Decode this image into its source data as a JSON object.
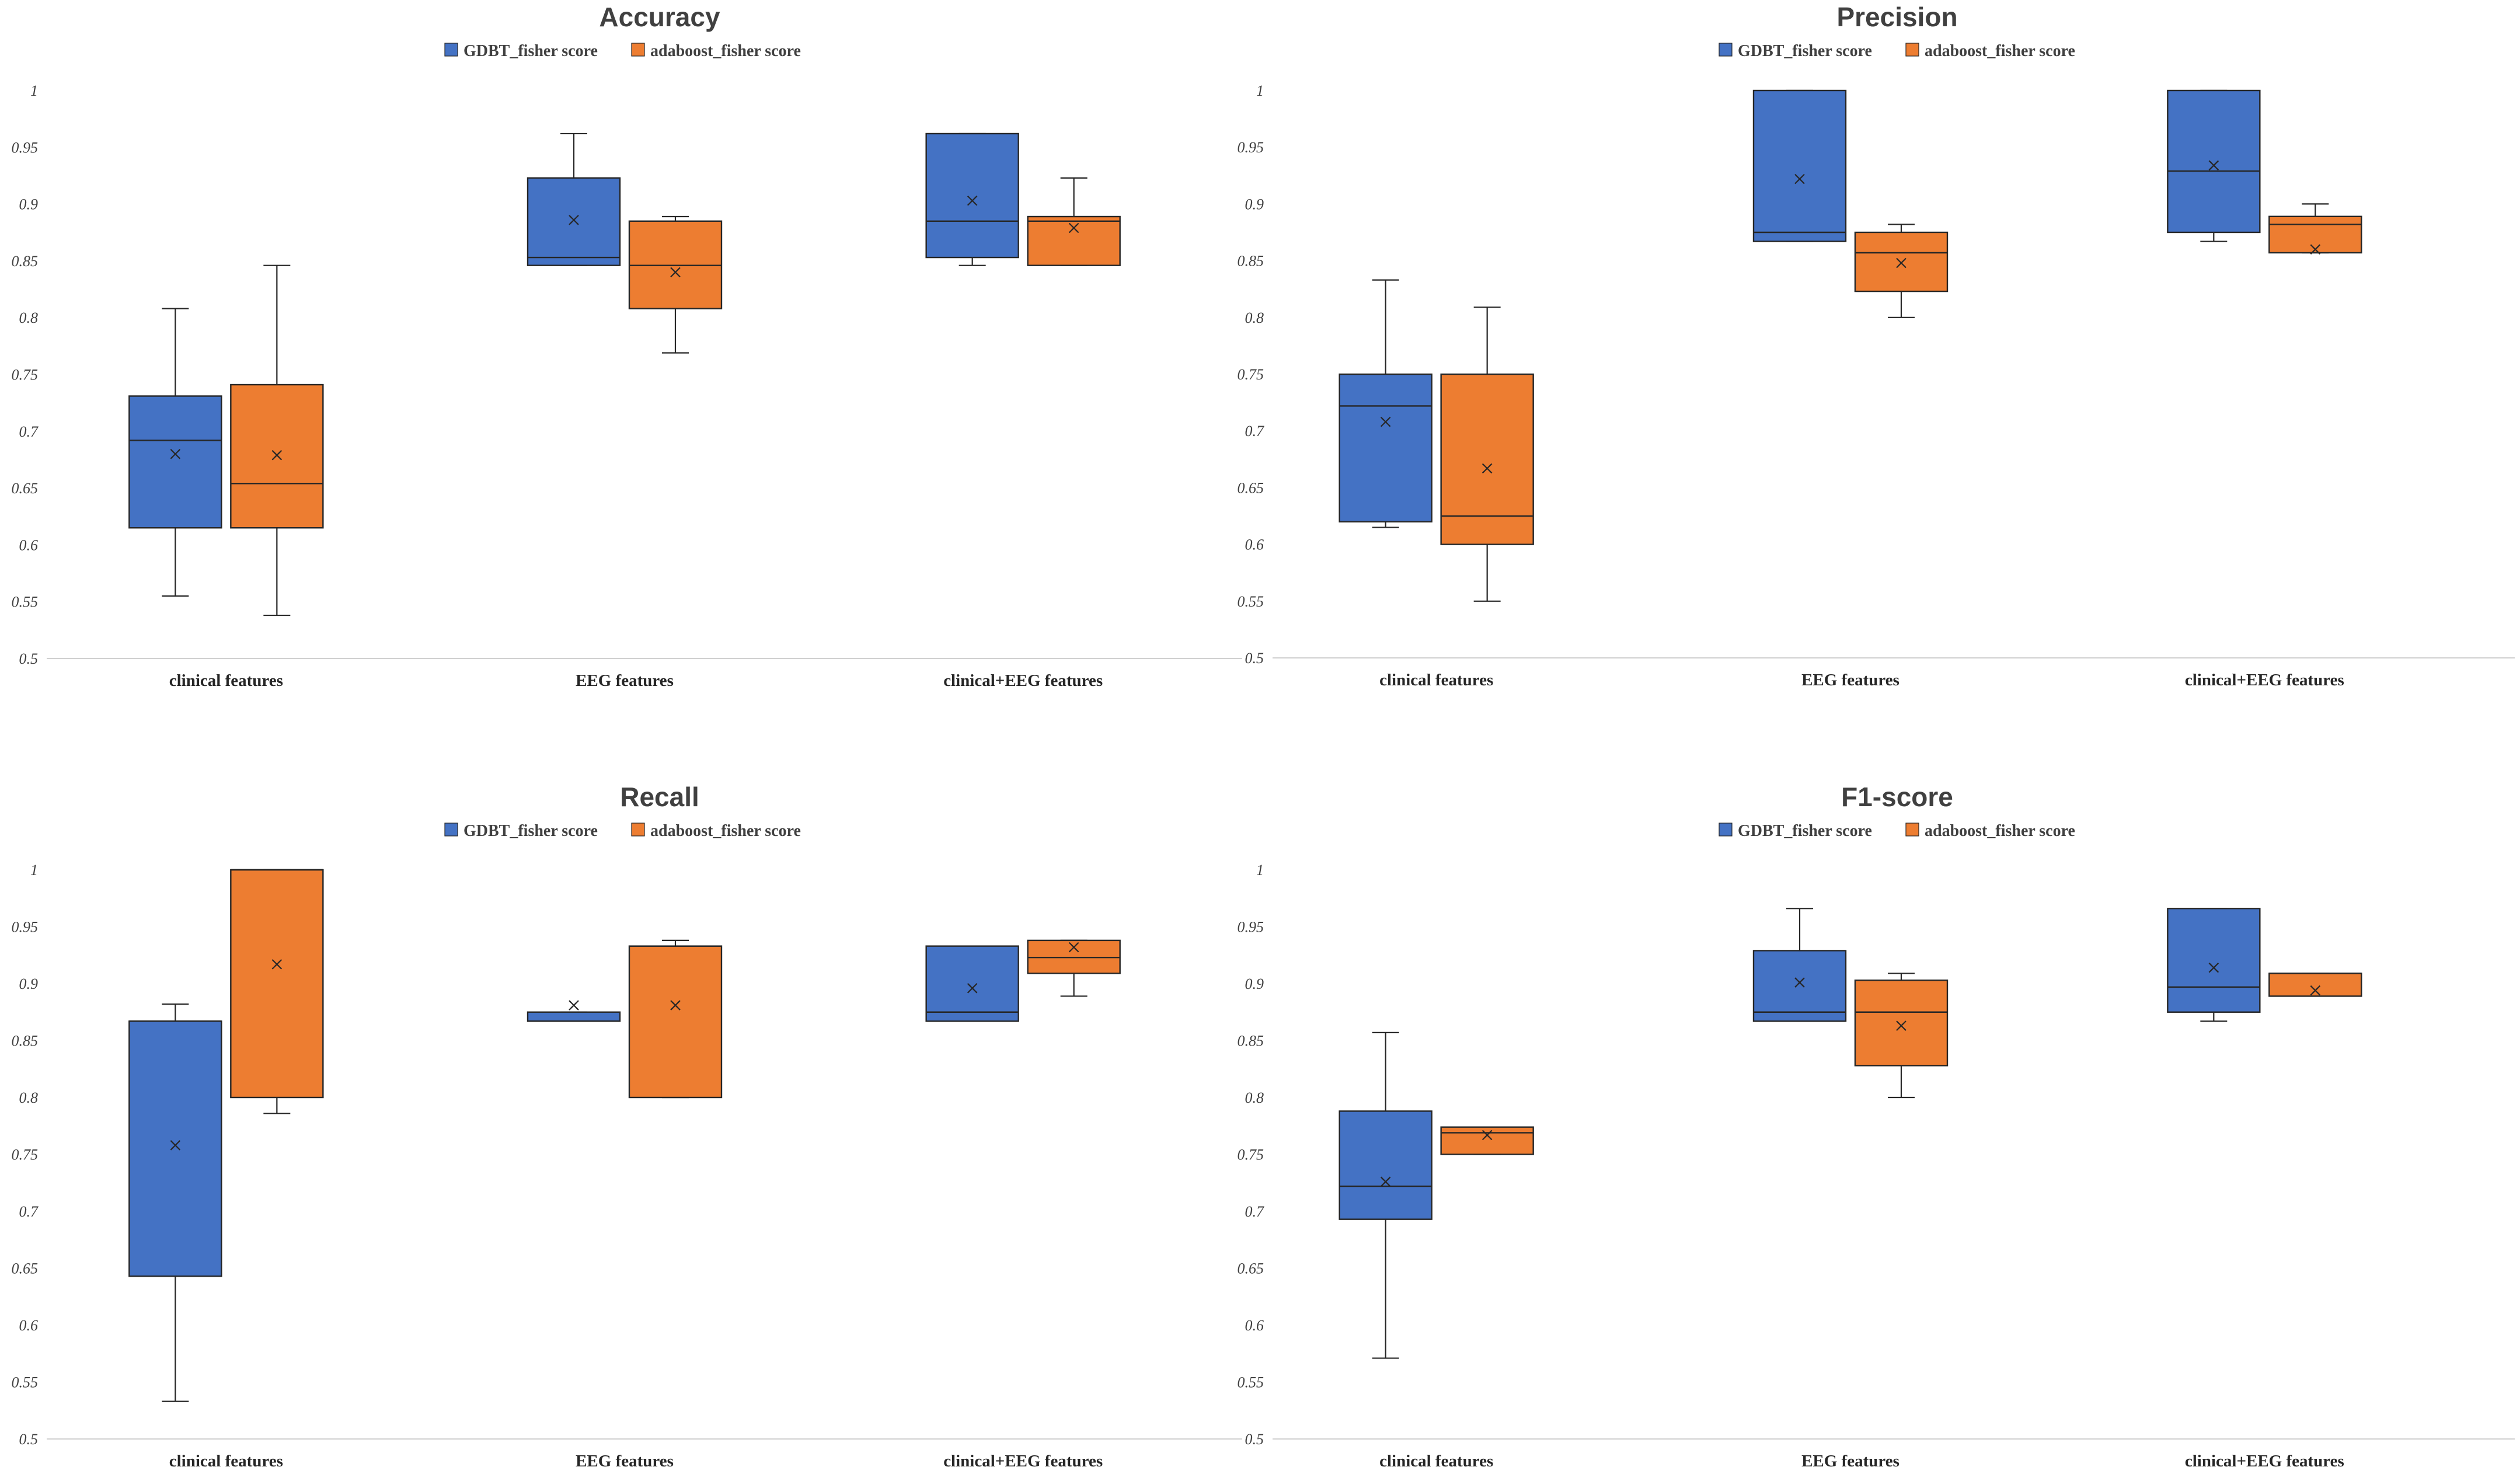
{
  "chart_data": [
    {
      "type": "box",
      "title": "Accuracy",
      "legend": [
        "GDBT_fisher score",
        "adaboost_fisher score"
      ],
      "categories": [
        "clinical features",
        "EEG features",
        "clinical+EEG features"
      ],
      "ylim": [
        0.5,
        1
      ],
      "yticks": [
        "0.5",
        "0.55",
        "0.6",
        "0.65",
        "0.7",
        "0.75",
        "0.8",
        "0.85",
        "0.9",
        "0.95",
        "1"
      ],
      "series": [
        {
          "name": "GDBT_fisher score",
          "color": "#4472c4",
          "boxes": [
            {
              "min": 0.555,
              "q1": 0.615,
              "median": 0.692,
              "q3": 0.731,
              "max": 0.808,
              "mean": 0.68
            },
            {
              "min": 0.846,
              "q1": 0.846,
              "median": 0.853,
              "q3": 0.923,
              "max": 0.962,
              "mean": 0.886
            },
            {
              "min": 0.846,
              "q1": 0.853,
              "median": 0.885,
              "q3": 0.962,
              "max": 0.962,
              "mean": 0.903
            }
          ]
        },
        {
          "name": "adaboost_fisher score",
          "color": "#ed7d31",
          "boxes": [
            {
              "min": 0.538,
              "q1": 0.615,
              "median": 0.654,
              "q3": 0.741,
              "max": 0.846,
              "mean": 0.679
            },
            {
              "min": 0.769,
              "q1": 0.808,
              "median": 0.846,
              "q3": 0.885,
              "max": 0.889,
              "mean": 0.84
            },
            {
              "min": 0.846,
              "q1": 0.846,
              "median": 0.885,
              "q3": 0.889,
              "max": 0.923,
              "mean": 0.879
            }
          ]
        }
      ]
    },
    {
      "type": "box",
      "title": "Precision",
      "legend": [
        "GDBT_fisher score",
        "adaboost_fisher score"
      ],
      "categories": [
        "clinical features",
        "EEG features",
        "clinical+EEG features"
      ],
      "ylim": [
        0.5,
        1
      ],
      "yticks": [
        "0.5",
        "0.55",
        "0.6",
        "0.65",
        "0.7",
        "0.75",
        "0.8",
        "0.85",
        "0.9",
        "0.95",
        "1"
      ],
      "series": [
        {
          "name": "GDBT_fisher score",
          "color": "#4472c4",
          "boxes": [
            {
              "min": 0.615,
              "q1": 0.62,
              "median": 0.722,
              "q3": 0.75,
              "max": 0.833,
              "mean": 0.708
            },
            {
              "min": 0.867,
              "q1": 0.867,
              "median": 0.875,
              "q3": 1.0,
              "max": 1.0,
              "mean": 0.922
            },
            {
              "min": 0.867,
              "q1": 0.875,
              "median": 0.929,
              "q3": 1.0,
              "max": 1.0,
              "mean": 0.934
            }
          ]
        },
        {
          "name": "adaboost_fisher score",
          "color": "#ed7d31",
          "boxes": [
            {
              "min": 0.55,
              "q1": 0.6,
              "median": 0.625,
              "q3": 0.75,
              "max": 0.809,
              "mean": 0.667
            },
            {
              "min": 0.8,
              "q1": 0.823,
              "median": 0.857,
              "q3": 0.875,
              "max": 0.882,
              "mean": 0.848
            },
            {
              "min": 0.857,
              "q1": 0.857,
              "median": 0.882,
              "q3": 0.889,
              "max": 0.9,
              "mean": 0.86
            }
          ]
        }
      ]
    },
    {
      "type": "box",
      "title": "Recall",
      "legend": [
        "GDBT_fisher score",
        "adaboost_fisher score"
      ],
      "categories": [
        "clinical features",
        "EEG features",
        "clinical+EEG features"
      ],
      "ylim": [
        0.5,
        1
      ],
      "yticks": [
        "0.5",
        "0.55",
        "0.6",
        "0.65",
        "0.7",
        "0.75",
        "0.8",
        "0.85",
        "0.9",
        "0.95",
        "1"
      ],
      "series": [
        {
          "name": "GDBT_fisher score",
          "color": "#4472c4",
          "boxes": [
            {
              "min": 0.533,
              "q1": 0.643,
              "median": 0.867,
              "q3": 0.867,
              "max": 0.882,
              "mean": 0.758
            },
            {
              "min": 0.867,
              "q1": 0.867,
              "median": 0.867,
              "q3": 0.875,
              "max": 0.875,
              "mean": 0.881
            },
            {
              "min": 0.867,
              "q1": 0.867,
              "median": 0.875,
              "q3": 0.933,
              "max": 0.933,
              "mean": 0.896
            }
          ]
        },
        {
          "name": "adaboost_fisher score",
          "color": "#ed7d31",
          "boxes": [
            {
              "min": 0.786,
              "q1": 0.8,
              "median": 1.0,
              "q3": 1.0,
              "max": 1.0,
              "mean": 0.917
            },
            {
              "min": 0.8,
              "q1": 0.8,
              "median": 0.933,
              "q3": 0.933,
              "max": 0.938,
              "mean": 0.881
            },
            {
              "min": 0.889,
              "q1": 0.909,
              "median": 0.923,
              "q3": 0.938,
              "max": 0.938,
              "mean": 0.932
            }
          ]
        }
      ]
    },
    {
      "type": "box",
      "title": "F1-score",
      "legend": [
        "GDBT_fisher score",
        "adaboost_fisher score"
      ],
      "categories": [
        "clinical features",
        "EEG features",
        "clinical+EEG features"
      ],
      "ylim": [
        0.5,
        1
      ],
      "yticks": [
        "0.5",
        "0.55",
        "0.6",
        "0.65",
        "0.7",
        "0.75",
        "0.8",
        "0.85",
        "0.9",
        "0.95",
        "1"
      ],
      "series": [
        {
          "name": "GDBT_fisher score",
          "color": "#4472c4",
          "boxes": [
            {
              "min": 0.571,
              "q1": 0.693,
              "median": 0.722,
              "q3": 0.788,
              "max": 0.857,
              "mean": 0.726
            },
            {
              "min": 0.867,
              "q1": 0.867,
              "median": 0.875,
              "q3": 0.929,
              "max": 0.966,
              "mean": 0.901
            },
            {
              "min": 0.867,
              "q1": 0.875,
              "median": 0.897,
              "q3": 0.966,
              "max": 0.966,
              "mean": 0.914
            }
          ]
        },
        {
          "name": "adaboost_fisher score",
          "color": "#ed7d31",
          "boxes": [
            {
              "min": 0.75,
              "q1": 0.75,
              "median": 0.769,
              "q3": 0.774,
              "max": 0.774,
              "mean": 0.767
            },
            {
              "min": 0.8,
              "q1": 0.828,
              "median": 0.875,
              "q3": 0.903,
              "max": 0.909,
              "mean": 0.863
            },
            {
              "min": 0.889,
              "q1": 0.889,
              "median": 0.909,
              "q3": 0.909,
              "max": 0.909,
              "mean": 0.894
            }
          ]
        }
      ]
    }
  ]
}
